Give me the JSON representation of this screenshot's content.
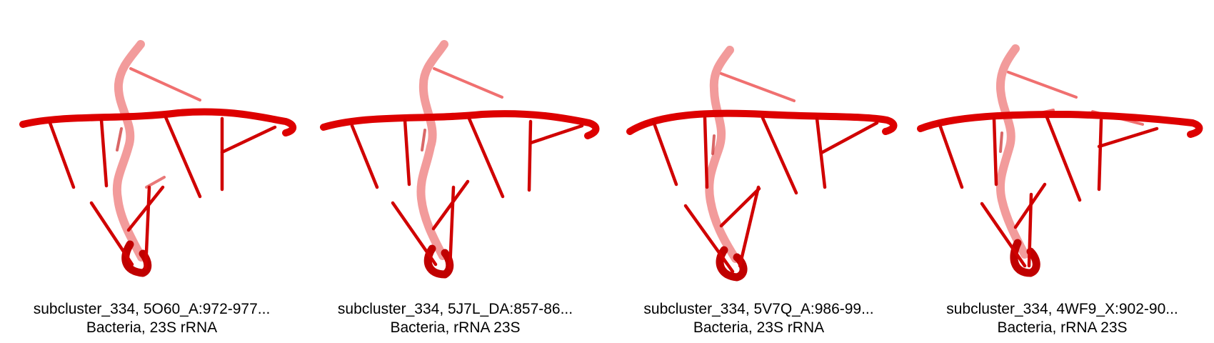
{
  "colors": {
    "rna_main": "#dd0000",
    "rna_dark": "#a80000",
    "rna_faded": "#f07070",
    "caption_text": "#000000",
    "background": "#ffffff"
  },
  "panels": [
    {
      "caption_line1": "subcluster_334, 5O60_A:972-977...",
      "caption_line2": "Bacteria, 23S rRNA"
    },
    {
      "caption_line1": "subcluster_334, 5J7L_DA:857-86...",
      "caption_line2": "Bacteria, rRNA 23S"
    },
    {
      "caption_line1": "subcluster_334, 5V7Q_A:986-99...",
      "caption_line2": "Bacteria, 23S rRNA"
    },
    {
      "caption_line1": "subcluster_334, 4WF9_X:902-90...",
      "caption_line2": "Bacteria, rRNA 23S"
    }
  ]
}
